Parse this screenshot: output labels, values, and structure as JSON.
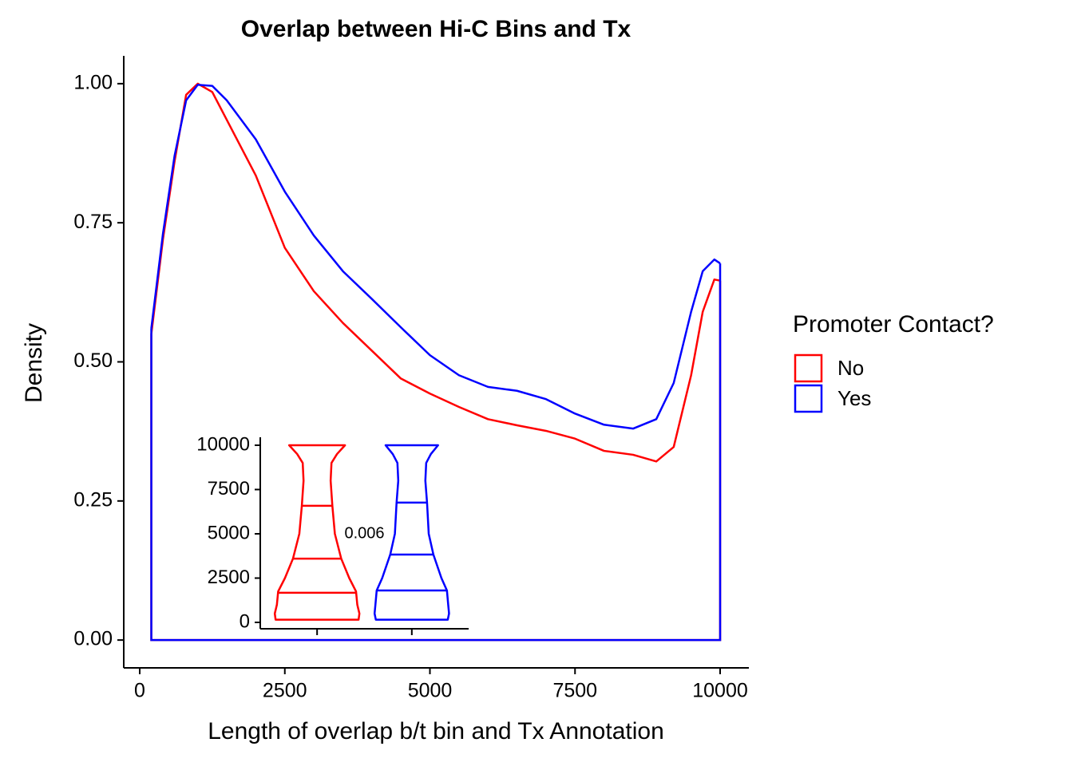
{
  "chart_data": [
    {
      "type": "line",
      "title": "Overlap between Hi-C Bins and Tx",
      "x_label": "Length of overlap b/t bin and Tx Annotation",
      "y_label": "Density",
      "legend_title": "Promoter Contact?",
      "legend": "right",
      "xlim": [
        -275,
        10495
      ],
      "ylim": [
        -0.05,
        1.05
      ],
      "xticks": [
        0,
        2500,
        5000,
        7500,
        10000
      ],
      "yticks": [
        {
          "value": 0,
          "label": "0.00"
        },
        {
          "value": 0.25,
          "label": "0.25"
        },
        {
          "value": 0.5,
          "label": "0.50"
        },
        {
          "value": 0.75,
          "label": "0.75"
        },
        {
          "value": 1,
          "label": "1.00"
        }
      ],
      "x": [
        200,
        400,
        600,
        800,
        1000,
        1250,
        1500,
        2000,
        2500,
        3000,
        3500,
        4000,
        4500,
        5000,
        5500,
        6000,
        6500,
        7000,
        7500,
        8000,
        8500,
        8900,
        9200,
        9500,
        9700,
        9900,
        10000
      ],
      "series": [
        {
          "name": "No",
          "color": "#ff0000",
          "values": [
            0.55,
            0.72,
            0.86,
            0.98,
            1.0,
            0.985,
            0.935,
            0.835,
            0.705,
            0.627,
            0.57,
            0.52,
            0.47,
            0.443,
            0.419,
            0.397,
            0.386,
            0.376,
            0.362,
            0.34,
            0.333,
            0.321,
            0.347,
            0.476,
            0.59,
            0.648,
            0.646
          ]
        },
        {
          "name": "Yes",
          "color": "#0000ff",
          "values": [
            0.56,
            0.73,
            0.87,
            0.97,
            0.998,
            0.996,
            0.97,
            0.9,
            0.806,
            0.727,
            0.663,
            0.613,
            0.562,
            0.512,
            0.476,
            0.455,
            0.448,
            0.433,
            0.407,
            0.387,
            0.38,
            0.397,
            0.462,
            0.59,
            0.663,
            0.684,
            0.677
          ]
        }
      ]
    },
    {
      "type": "violin",
      "annotation": "0.006",
      "categories": [
        null,
        null
      ],
      "ylim": [
        -360,
        10450
      ],
      "yticks": [
        0,
        2500,
        5000,
        7500,
        10000
      ],
      "series": [
        {
          "color": "#ff0000",
          "y": [
            150,
            500,
            1000,
            1750,
            2500,
            3600,
            5000,
            6600,
            8000,
            9000,
            9500,
            10000
          ],
          "density": [
            0.98,
            1.0,
            0.95,
            0.92,
            0.76,
            0.57,
            0.42,
            0.36,
            0.32,
            0.34,
            0.47,
            0.66
          ],
          "quantiles": [
            1670,
            3600,
            6580
          ]
        },
        {
          "color": "#0000ff",
          "y": [
            150,
            500,
            1000,
            1800,
            2500,
            3830,
            5000,
            6760,
            8000,
            9000,
            9500,
            10000
          ],
          "density": [
            0.85,
            0.88,
            0.86,
            0.83,
            0.7,
            0.51,
            0.4,
            0.36,
            0.32,
            0.34,
            0.45,
            0.62
          ],
          "quantiles": [
            1800,
            3830,
            6760
          ]
        }
      ]
    }
  ]
}
